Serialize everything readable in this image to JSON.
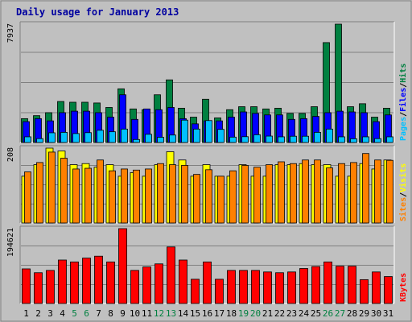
{
  "title": "Daily usage for January 2013",
  "chart_data": [
    {
      "type": "bar",
      "panel": "pages-files-hits",
      "categories": [
        "1",
        "2",
        "3",
        "4",
        "5",
        "6",
        "7",
        "8",
        "9",
        "10",
        "11",
        "12",
        "13",
        "14",
        "15",
        "16",
        "17",
        "18",
        "19",
        "20",
        "21",
        "22",
        "23",
        "24",
        "25",
        "26",
        "27",
        "28",
        "29",
        "30",
        "31"
      ],
      "ytick": "7937",
      "ylim": [
        0,
        7937
      ],
      "legend_labels": [
        "Pages",
        "/",
        "Files",
        "/",
        "Hits"
      ],
      "series": [
        {
          "name": "Hits",
          "color": "#008040",
          "values": [
            1600,
            1800,
            2000,
            2750,
            2700,
            2700,
            2650,
            2350,
            3600,
            2250,
            2200,
            3200,
            4200,
            2300,
            1700,
            2900,
            1650,
            2200,
            2400,
            2400,
            2250,
            2300,
            1950,
            1950,
            2400,
            6700,
            7937,
            2400,
            2600,
            1700,
            2300
          ]
        },
        {
          "name": "Files",
          "color": "#0000ff",
          "values": [
            1400,
            1600,
            1450,
            2000,
            2100,
            2100,
            2000,
            1700,
            3200,
            1550,
            2250,
            2200,
            2350,
            1600,
            1250,
            1450,
            1450,
            1700,
            2050,
            1950,
            1850,
            1850,
            1550,
            1600,
            1750,
            2000,
            2100,
            2050,
            2000,
            1400,
            1850
          ]
        },
        {
          "name": "Pages",
          "color": "#00c0ff",
          "values": [
            380,
            260,
            650,
            680,
            600,
            660,
            820,
            720,
            900,
            200,
            550,
            350,
            500,
            1500,
            900,
            1470,
            880,
            360,
            390,
            520,
            430,
            380,
            420,
            420,
            680,
            900,
            380,
            250,
            380,
            260,
            380
          ]
        }
      ]
    },
    {
      "type": "bar",
      "panel": "sites-visits",
      "categories": [
        "1",
        "2",
        "3",
        "4",
        "5",
        "6",
        "7",
        "8",
        "9",
        "10",
        "11",
        "12",
        "13",
        "14",
        "15",
        "16",
        "17",
        "18",
        "19",
        "20",
        "21",
        "22",
        "23",
        "24",
        "25",
        "26",
        "27",
        "28",
        "29",
        "30",
        "31"
      ],
      "ytick": "208",
      "ylim": [
        0,
        208
      ],
      "legend_labels": [
        "Sites",
        "/",
        "Visits"
      ],
      "series": [
        {
          "name": "Visits",
          "color": "#ffff00",
          "values": [
            130,
            162,
            208,
            200,
            162,
            165,
            155,
            162,
            130,
            140,
            130,
            162,
            198,
            175,
            130,
            162,
            130,
            130,
            162,
            130,
            130,
            162,
            162,
            165,
            162,
            162,
            130,
            130,
            165,
            150,
            175
          ]
        },
        {
          "name": "Sites",
          "color": "#ff8000",
          "values": [
            142,
            168,
            197,
            180,
            150,
            152,
            175,
            145,
            150,
            147,
            150,
            165,
            162,
            160,
            135,
            148,
            130,
            145,
            160,
            155,
            162,
            170,
            165,
            175,
            175,
            153,
            165,
            168,
            193,
            175,
            174
          ]
        }
      ]
    },
    {
      "type": "bar",
      "panel": "kbytes",
      "categories": [
        "1",
        "2",
        "3",
        "4",
        "5",
        "6",
        "7",
        "8",
        "9",
        "10",
        "11",
        "12",
        "13",
        "14",
        "15",
        "16",
        "17",
        "18",
        "19",
        "20",
        "21",
        "22",
        "23",
        "24",
        "25",
        "26",
        "27",
        "28",
        "29",
        "30",
        "31"
      ],
      "ytick": "194621",
      "ylim": [
        0,
        194621
      ],
      "legend_labels": [
        "KBytes"
      ],
      "series": [
        {
          "name": "KBytes",
          "color": "#ff0000",
          "values": [
            90000,
            80000,
            86000,
            113000,
            108000,
            118000,
            123000,
            108000,
            194621,
            86000,
            95000,
            103000,
            147000,
            113000,
            63000,
            108000,
            63000,
            86000,
            86000,
            86000,
            82000,
            80000,
            82000,
            91000,
            96000,
            108000,
            97000,
            97000,
            62000,
            82000,
            70000
          ]
        }
      ]
    }
  ]
}
